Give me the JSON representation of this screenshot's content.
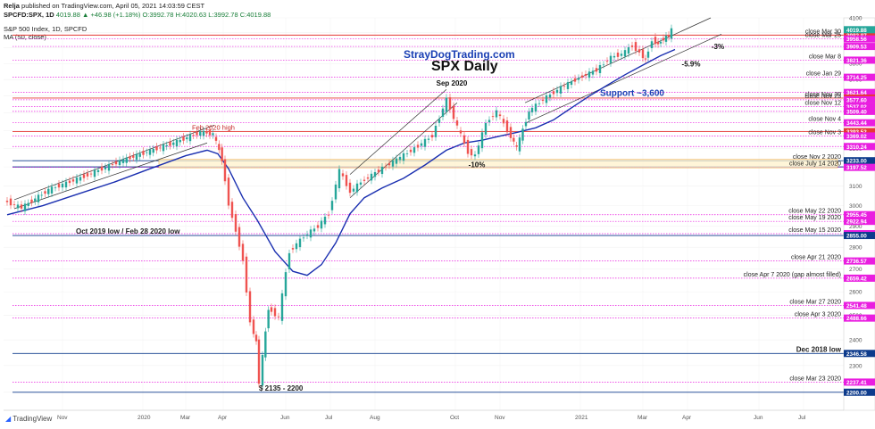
{
  "header": {
    "author": "Relja",
    "published": "published on TradingView.com, April 05, 2021 14:03:59 CEST",
    "symbol": "SPCFD:SPX, 1D",
    "ohlc": "4019.88 ▲ +46.98 (+1.18%) O:3992.78 H:4020.63 L:3992.78 C:4019.88",
    "instrument": "S&P 500 Index, 1D, SPCFD",
    "indicator": "MA (50, close)"
  },
  "watermark": "StrayDogTrading.com",
  "footer_logo": "TradingView",
  "chart_data": {
    "type": "line",
    "title": "SPX Daily",
    "ylim": [
      2135,
      4100
    ],
    "yscale": "log",
    "grid": true,
    "price_ticks": [
      2200,
      2300,
      2400,
      2500,
      2600,
      2700,
      2800,
      2900,
      3000,
      3100,
      3200,
      3300,
      3400,
      3500,
      3600,
      3700,
      3800,
      3900,
      4000,
      4100
    ],
    "time_labels": [
      "Nov",
      "2020",
      "Mar",
      "Apr",
      "Jun",
      "Jul",
      "Aug",
      "Oct",
      "Nov",
      "2021",
      "Mar",
      "Apr",
      "Jun",
      "Jul"
    ],
    "price_series": [
      {
        "d": 0,
        "v": 3025
      },
      {
        "d": 10,
        "v": 2990
      },
      {
        "d": 25,
        "v": 3080
      },
      {
        "d": 45,
        "v": 3150
      },
      {
        "d": 65,
        "v": 3230
      },
      {
        "d": 80,
        "v": 3280
      },
      {
        "d": 95,
        "v": 3330
      },
      {
        "d": 110,
        "v": 3390
      },
      {
        "d": 117,
        "v": 3380
      },
      {
        "d": 122,
        "v": 3240
      },
      {
        "d": 126,
        "v": 3010
      },
      {
        "d": 130,
        "v": 2880
      },
      {
        "d": 134,
        "v": 2740
      },
      {
        "d": 138,
        "v": 2470
      },
      {
        "d": 141,
        "v": 2390
      },
      {
        "d": 143,
        "v": 2237
      },
      {
        "d": 148,
        "v": 2530
      },
      {
        "d": 154,
        "v": 2490
      },
      {
        "d": 160,
        "v": 2780
      },
      {
        "d": 168,
        "v": 2850
      },
      {
        "d": 176,
        "v": 2900
      },
      {
        "d": 182,
        "v": 2960
      },
      {
        "d": 188,
        "v": 3180
      },
      {
        "d": 194,
        "v": 3070
      },
      {
        "d": 200,
        "v": 3120
      },
      {
        "d": 210,
        "v": 3180
      },
      {
        "d": 220,
        "v": 3240
      },
      {
        "d": 230,
        "v": 3300
      },
      {
        "d": 240,
        "v": 3370
      },
      {
        "d": 248,
        "v": 3580
      },
      {
        "d": 254,
        "v": 3420
      },
      {
        "d": 260,
        "v": 3280
      },
      {
        "d": 264,
        "v": 3260
      },
      {
        "d": 270,
        "v": 3440
      },
      {
        "d": 276,
        "v": 3510
      },
      {
        "d": 282,
        "v": 3400
      },
      {
        "d": 287,
        "v": 3300
      },
      {
        "d": 294,
        "v": 3510
      },
      {
        "d": 302,
        "v": 3580
      },
      {
        "d": 312,
        "v": 3650
      },
      {
        "d": 322,
        "v": 3710
      },
      {
        "d": 332,
        "v": 3760
      },
      {
        "d": 340,
        "v": 3840
      },
      {
        "d": 346,
        "v": 3860
      },
      {
        "d": 352,
        "v": 3915
      },
      {
        "d": 356,
        "v": 3870
      },
      {
        "d": 359,
        "v": 3820
      },
      {
        "d": 363,
        "v": 3950
      },
      {
        "d": 366,
        "v": 3925
      },
      {
        "d": 369,
        "v": 3960
      },
      {
        "d": 372,
        "v": 3980
      },
      {
        "d": 374,
        "v": 4019.88
      }
    ],
    "ma50_series": [
      {
        "d": 0,
        "v": 2955
      },
      {
        "d": 20,
        "v": 3000
      },
      {
        "d": 40,
        "v": 3060
      },
      {
        "d": 60,
        "v": 3120
      },
      {
        "d": 80,
        "v": 3190
      },
      {
        "d": 100,
        "v": 3260
      },
      {
        "d": 112,
        "v": 3290
      },
      {
        "d": 118,
        "v": 3270
      },
      {
        "d": 124,
        "v": 3190
      },
      {
        "d": 132,
        "v": 3040
      },
      {
        "d": 140,
        "v": 2930
      },
      {
        "d": 150,
        "v": 2780
      },
      {
        "d": 160,
        "v": 2690
      },
      {
        "d": 168,
        "v": 2672
      },
      {
        "d": 176,
        "v": 2720
      },
      {
        "d": 184,
        "v": 2820
      },
      {
        "d": 192,
        "v": 2960
      },
      {
        "d": 200,
        "v": 3040
      },
      {
        "d": 210,
        "v": 3090
      },
      {
        "d": 222,
        "v": 3140
      },
      {
        "d": 234,
        "v": 3210
      },
      {
        "d": 246,
        "v": 3290
      },
      {
        "d": 256,
        "v": 3330
      },
      {
        "d": 266,
        "v": 3345
      },
      {
        "d": 276,
        "v": 3368
      },
      {
        "d": 286,
        "v": 3390
      },
      {
        "d": 296,
        "v": 3415
      },
      {
        "d": 306,
        "v": 3460
      },
      {
        "d": 316,
        "v": 3530
      },
      {
        "d": 326,
        "v": 3600
      },
      {
        "d": 336,
        "v": 3665
      },
      {
        "d": 346,
        "v": 3730
      },
      {
        "d": 356,
        "v": 3790
      },
      {
        "d": 366,
        "v": 3850
      },
      {
        "d": 374,
        "v": 3890
      }
    ],
    "levels": [
      {
        "price": 3983.87,
        "label": "close Mar 30",
        "tag_color": "#e53935",
        "line_color": "#e53935",
        "style": "solid"
      },
      {
        "price": 3958.56,
        "label": "close Mar 25",
        "tag_color": "#e91ee0",
        "line_color": "#e91ee0",
        "style": "dotted"
      },
      {
        "price": 3909.53,
        "label": "",
        "tag_color": "#e91ee0",
        "line_color": "#e91ee0",
        "style": "dotted"
      },
      {
        "price": 3821.36,
        "label": "close Mar 8",
        "tag_color": "#e91ee0",
        "line_color": "#e91ee0",
        "style": "dotted"
      },
      {
        "price": 3714.25,
        "label": "close Jan 29",
        "tag_color": "#e91ee0",
        "line_color": "#e91ee0",
        "style": "dotted"
      },
      {
        "price": 3621.64,
        "label": "",
        "tag_color": "#e91ee0",
        "line_color": "#e91ee0",
        "style": "dotted"
      },
      {
        "price": 3588.11,
        "label": "close Nov 30",
        "tag_color": "#e53935",
        "line_color": "#e53935",
        "style": "solid"
      },
      {
        "price": 3577.6,
        "label": "close Nov 23",
        "tag_color": "#e91ee0",
        "line_color": "#e91ee0",
        "style": "dotted"
      },
      {
        "price": 3537.02,
        "label": "close Nov 12",
        "tag_color": "#e91ee0",
        "line_color": "#e91ee0",
        "style": "dotted"
      },
      {
        "price": 3509.4,
        "label": "",
        "tag_color": "#e91ee0",
        "line_color": "#e91ee0",
        "style": "dotted"
      },
      {
        "price": 3443.44,
        "label": "close Nov 4",
        "tag_color": "#e91ee0",
        "line_color": "#e91ee0",
        "style": "dotted"
      },
      {
        "price": 3393.52,
        "label": "Feb 2020 high",
        "tag_color": "#e53935",
        "line_color": "#e53935",
        "style": "solid"
      },
      {
        "price": 3369.02,
        "label": "close Nov 3",
        "tag_color": "#e91ee0",
        "line_color": "#e91ee0",
        "style": "dotted"
      },
      {
        "price": 3310.24,
        "label": "",
        "tag_color": "#e91ee0",
        "line_color": "#e91ee0",
        "style": "dotted"
      },
      {
        "price": 3233.0,
        "label": "close Nov 2 2020",
        "tag_color": "#0d3b8c",
        "line_color": "#0d3b8c",
        "style": "solid"
      },
      {
        "price": 3200.0,
        "label": "",
        "tag_color": "#0d3b8c",
        "line_color": "#0d3b8c",
        "style": "solid"
      },
      {
        "price": 3197.52,
        "label": "close July 14 2020",
        "tag_color": "#e91ee0",
        "line_color": "#e91ee0",
        "style": "dotted"
      },
      {
        "price": 2955.45,
        "label": "close May 22 2020",
        "tag_color": "#e91ee0",
        "line_color": "#e91ee0",
        "style": "dotted"
      },
      {
        "price": 2922.94,
        "label": "close May 19 2020",
        "tag_color": "#e91ee0",
        "line_color": "#e91ee0",
        "style": "dotted"
      },
      {
        "price": 2863.7,
        "label": "close May 15 2020",
        "tag_color": "#e91ee0",
        "line_color": "#e91ee0",
        "style": "dotted"
      },
      {
        "price": 2855.0,
        "label": "Oct 2019 low / Feb 28 2020 low",
        "tag_color": "#0d3b8c",
        "line_color": "#0d3b8c",
        "style": "solid"
      },
      {
        "price": 2736.57,
        "label": "close Apr 21 2020",
        "tag_color": "#e91ee0",
        "line_color": "#e91ee0",
        "style": "dotted"
      },
      {
        "price": 2659.42,
        "label": "close Apr 7 2020 (gap almost filled)",
        "tag_color": "#e91ee0",
        "line_color": "#e91ee0",
        "style": "dotted"
      },
      {
        "price": 2541.48,
        "label": "close Mar 27 2020",
        "tag_color": "#e91ee0",
        "line_color": "#e91ee0",
        "style": "dotted"
      },
      {
        "price": 2488.66,
        "label": "close Apr 3 2020",
        "tag_color": "#e91ee0",
        "line_color": "#e91ee0",
        "style": "dotted"
      },
      {
        "price": 2346.58,
        "label": "Dec 2018 low",
        "tag_color": "#0d3b8c",
        "line_color": "#0d3b8c",
        "style": "solid"
      },
      {
        "price": 2237.41,
        "label": "close Mar 23 2020",
        "tag_color": "#e91ee0",
        "line_color": "#e91ee0",
        "style": "dotted"
      },
      {
        "price": 2200.0,
        "label": "$ 2135 - 2200",
        "tag_color": "#0d3b8c",
        "line_color": "#0d3b8c",
        "style": "solid"
      }
    ],
    "last_price": 4019.88,
    "annotations": [
      {
        "text": "Sep 2020",
        "d": 249,
        "v": 3640
      },
      {
        "text": "Support ~3,600",
        "d": 350,
        "v": 3600
      },
      {
        "text": "-10%",
        "d": 263,
        "v": 3180
      },
      {
        "text": "-5.9%",
        "d": 383,
        "v": 3760
      },
      {
        "text": "-3%",
        "d": 398,
        "v": 3870
      }
    ]
  }
}
